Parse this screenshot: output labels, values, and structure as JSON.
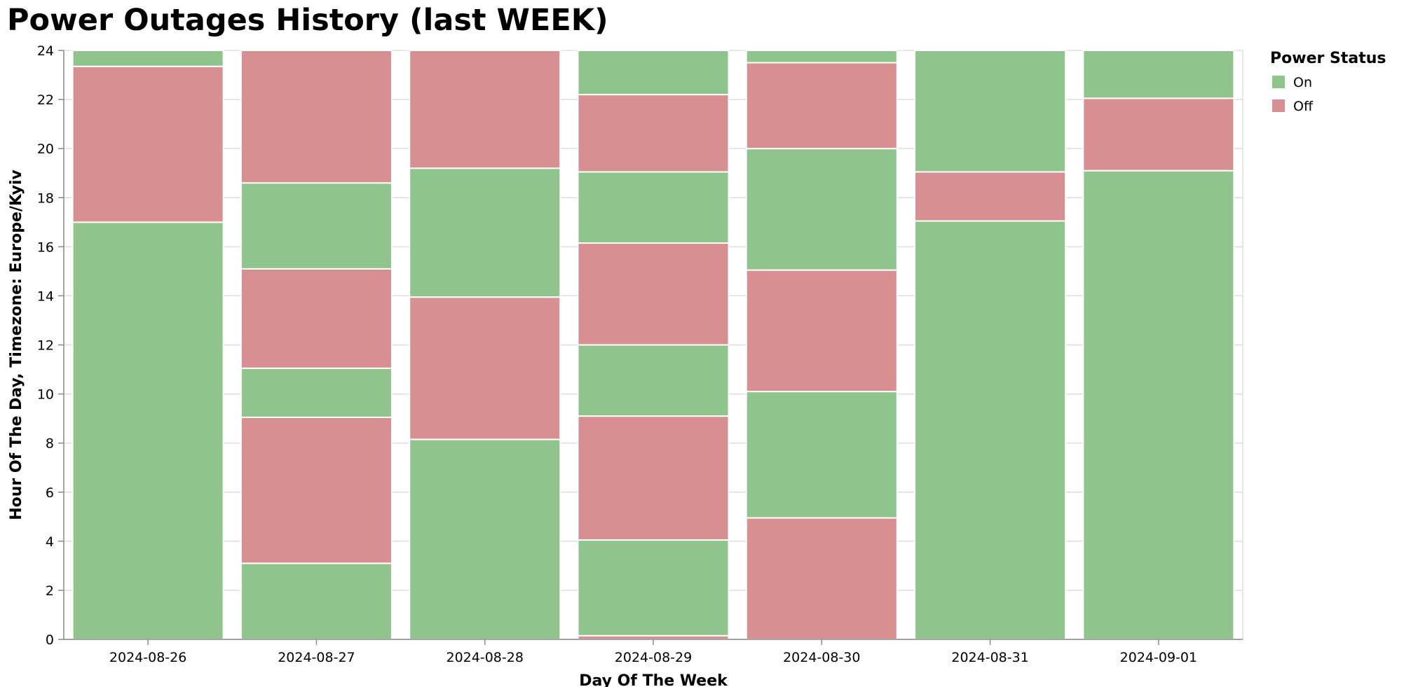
{
  "chart_data": {
    "type": "bar",
    "stacked": true,
    "title": "Power Outages History (last WEEK)",
    "xlabel": "Day Of The Week",
    "ylabel": "Hour Of The Day, Timezone: Europe/Kyiv",
    "ylim": [
      0,
      24
    ],
    "yticks": [
      0,
      2,
      4,
      6,
      8,
      10,
      12,
      14,
      16,
      18,
      20,
      22,
      24
    ],
    "grid": true,
    "legend": {
      "title": "Power Status",
      "placement": "top-right",
      "entries": [
        {
          "label": "On",
          "color": "#8fc48d"
        },
        {
          "label": "Off",
          "color": "#d88f91"
        }
      ]
    },
    "colors": {
      "On": "#8fc48d",
      "Off": "#d88f91"
    },
    "categories": [
      "2024-08-26",
      "2024-08-27",
      "2024-08-28",
      "2024-08-29",
      "2024-08-30",
      "2024-08-31",
      "2024-09-01"
    ],
    "segments": [
      [
        {
          "status": "On",
          "start": 0,
          "end": 17
        },
        {
          "status": "Off",
          "start": 17,
          "end": 23.35
        },
        {
          "status": "On",
          "start": 23.35,
          "end": 24
        }
      ],
      [
        {
          "status": "On",
          "start": 0,
          "end": 3.1
        },
        {
          "status": "Off",
          "start": 3.1,
          "end": 9.05
        },
        {
          "status": "On",
          "start": 9.05,
          "end": 11.05
        },
        {
          "status": "Off",
          "start": 11.05,
          "end": 15.1
        },
        {
          "status": "On",
          "start": 15.1,
          "end": 18.6
        },
        {
          "status": "Off",
          "start": 18.6,
          "end": 24
        }
      ],
      [
        {
          "status": "On",
          "start": 0,
          "end": 8.15
        },
        {
          "status": "Off",
          "start": 8.15,
          "end": 13.95
        },
        {
          "status": "On",
          "start": 13.95,
          "end": 19.2
        },
        {
          "status": "Off",
          "start": 19.2,
          "end": 24
        }
      ],
      [
        {
          "status": "Off",
          "start": 0,
          "end": 0.15
        },
        {
          "status": "On",
          "start": 0.15,
          "end": 4.05
        },
        {
          "status": "Off",
          "start": 4.05,
          "end": 9.1
        },
        {
          "status": "On",
          "start": 9.1,
          "end": 12.0
        },
        {
          "status": "Off",
          "start": 12.0,
          "end": 16.15
        },
        {
          "status": "On",
          "start": 16.15,
          "end": 19.05
        },
        {
          "status": "Off",
          "start": 19.05,
          "end": 22.2
        },
        {
          "status": "On",
          "start": 22.2,
          "end": 24
        }
      ],
      [
        {
          "status": "Off",
          "start": 0,
          "end": 4.95
        },
        {
          "status": "On",
          "start": 4.95,
          "end": 10.1
        },
        {
          "status": "Off",
          "start": 10.1,
          "end": 15.05
        },
        {
          "status": "On",
          "start": 15.05,
          "end": 20.0
        },
        {
          "status": "Off",
          "start": 20.0,
          "end": 23.5
        },
        {
          "status": "On",
          "start": 23.5,
          "end": 24
        }
      ],
      [
        {
          "status": "On",
          "start": 0,
          "end": 17.05
        },
        {
          "status": "Off",
          "start": 17.05,
          "end": 19.05
        },
        {
          "status": "On",
          "start": 19.05,
          "end": 24
        }
      ],
      [
        {
          "status": "On",
          "start": 0,
          "end": 19.1
        },
        {
          "status": "Off",
          "start": 19.1,
          "end": 22.05
        },
        {
          "status": "On",
          "start": 22.05,
          "end": 24
        }
      ]
    ]
  }
}
